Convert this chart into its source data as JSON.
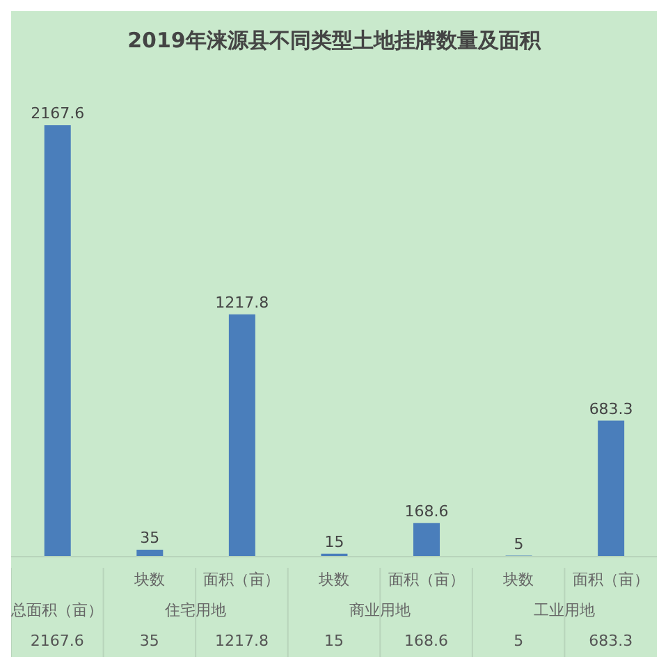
{
  "chart_data": {
    "type": "bar",
    "title": "2019年涞源县不同类型土地挂牌数量及面积",
    "categories": [
      null,
      "块数",
      "面积（亩）",
      "块数",
      "面积（亩）",
      "块数",
      "面积（亩）"
    ],
    "values": [
      2167.6,
      35,
      1217.8,
      15,
      168.6,
      5,
      683.3
    ],
    "value_labels": [
      "2167.6",
      "35",
      "1217.8",
      "15",
      "168.6",
      "5",
      "683.3"
    ],
    "color": "#4a7ebb",
    "grid": false,
    "legend": false,
    "annotations": [
      "总面积（亩）",
      "住宅用地",
      "商业用地",
      "工业用地",
      "2167.6",
      "35",
      "1217.8",
      "15",
      "168.6",
      "5",
      "683.3"
    ]
  }
}
